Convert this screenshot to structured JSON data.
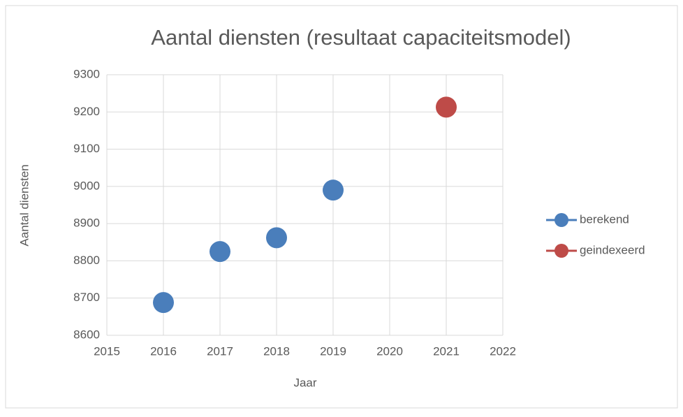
{
  "chart_data": {
    "type": "scatter",
    "title": "Aantal diensten (resultaat capaciteitsmodel)",
    "x_label": "Jaar",
    "y_label": "Aantal diensten",
    "series": [
      {
        "name": "berekend",
        "color": "#4a7ebb",
        "x": [
          2016,
          2017,
          2018,
          2019
        ],
        "values": [
          8688,
          8825,
          8862,
          8990
        ]
      },
      {
        "name": "geindexeerd",
        "color": "#be4b48",
        "x": [
          2021
        ],
        "values": [
          9213
        ]
      }
    ],
    "xlim": [
      2015,
      2022
    ],
    "xticks": [
      2015,
      2016,
      2017,
      2018,
      2019,
      2020,
      2021,
      2022
    ],
    "ylim": [
      8600,
      9300
    ],
    "yticks": [
      8600,
      8700,
      8800,
      8900,
      9000,
      9100,
      9200,
      9300
    ],
    "grid": true,
    "legend": "right"
  }
}
